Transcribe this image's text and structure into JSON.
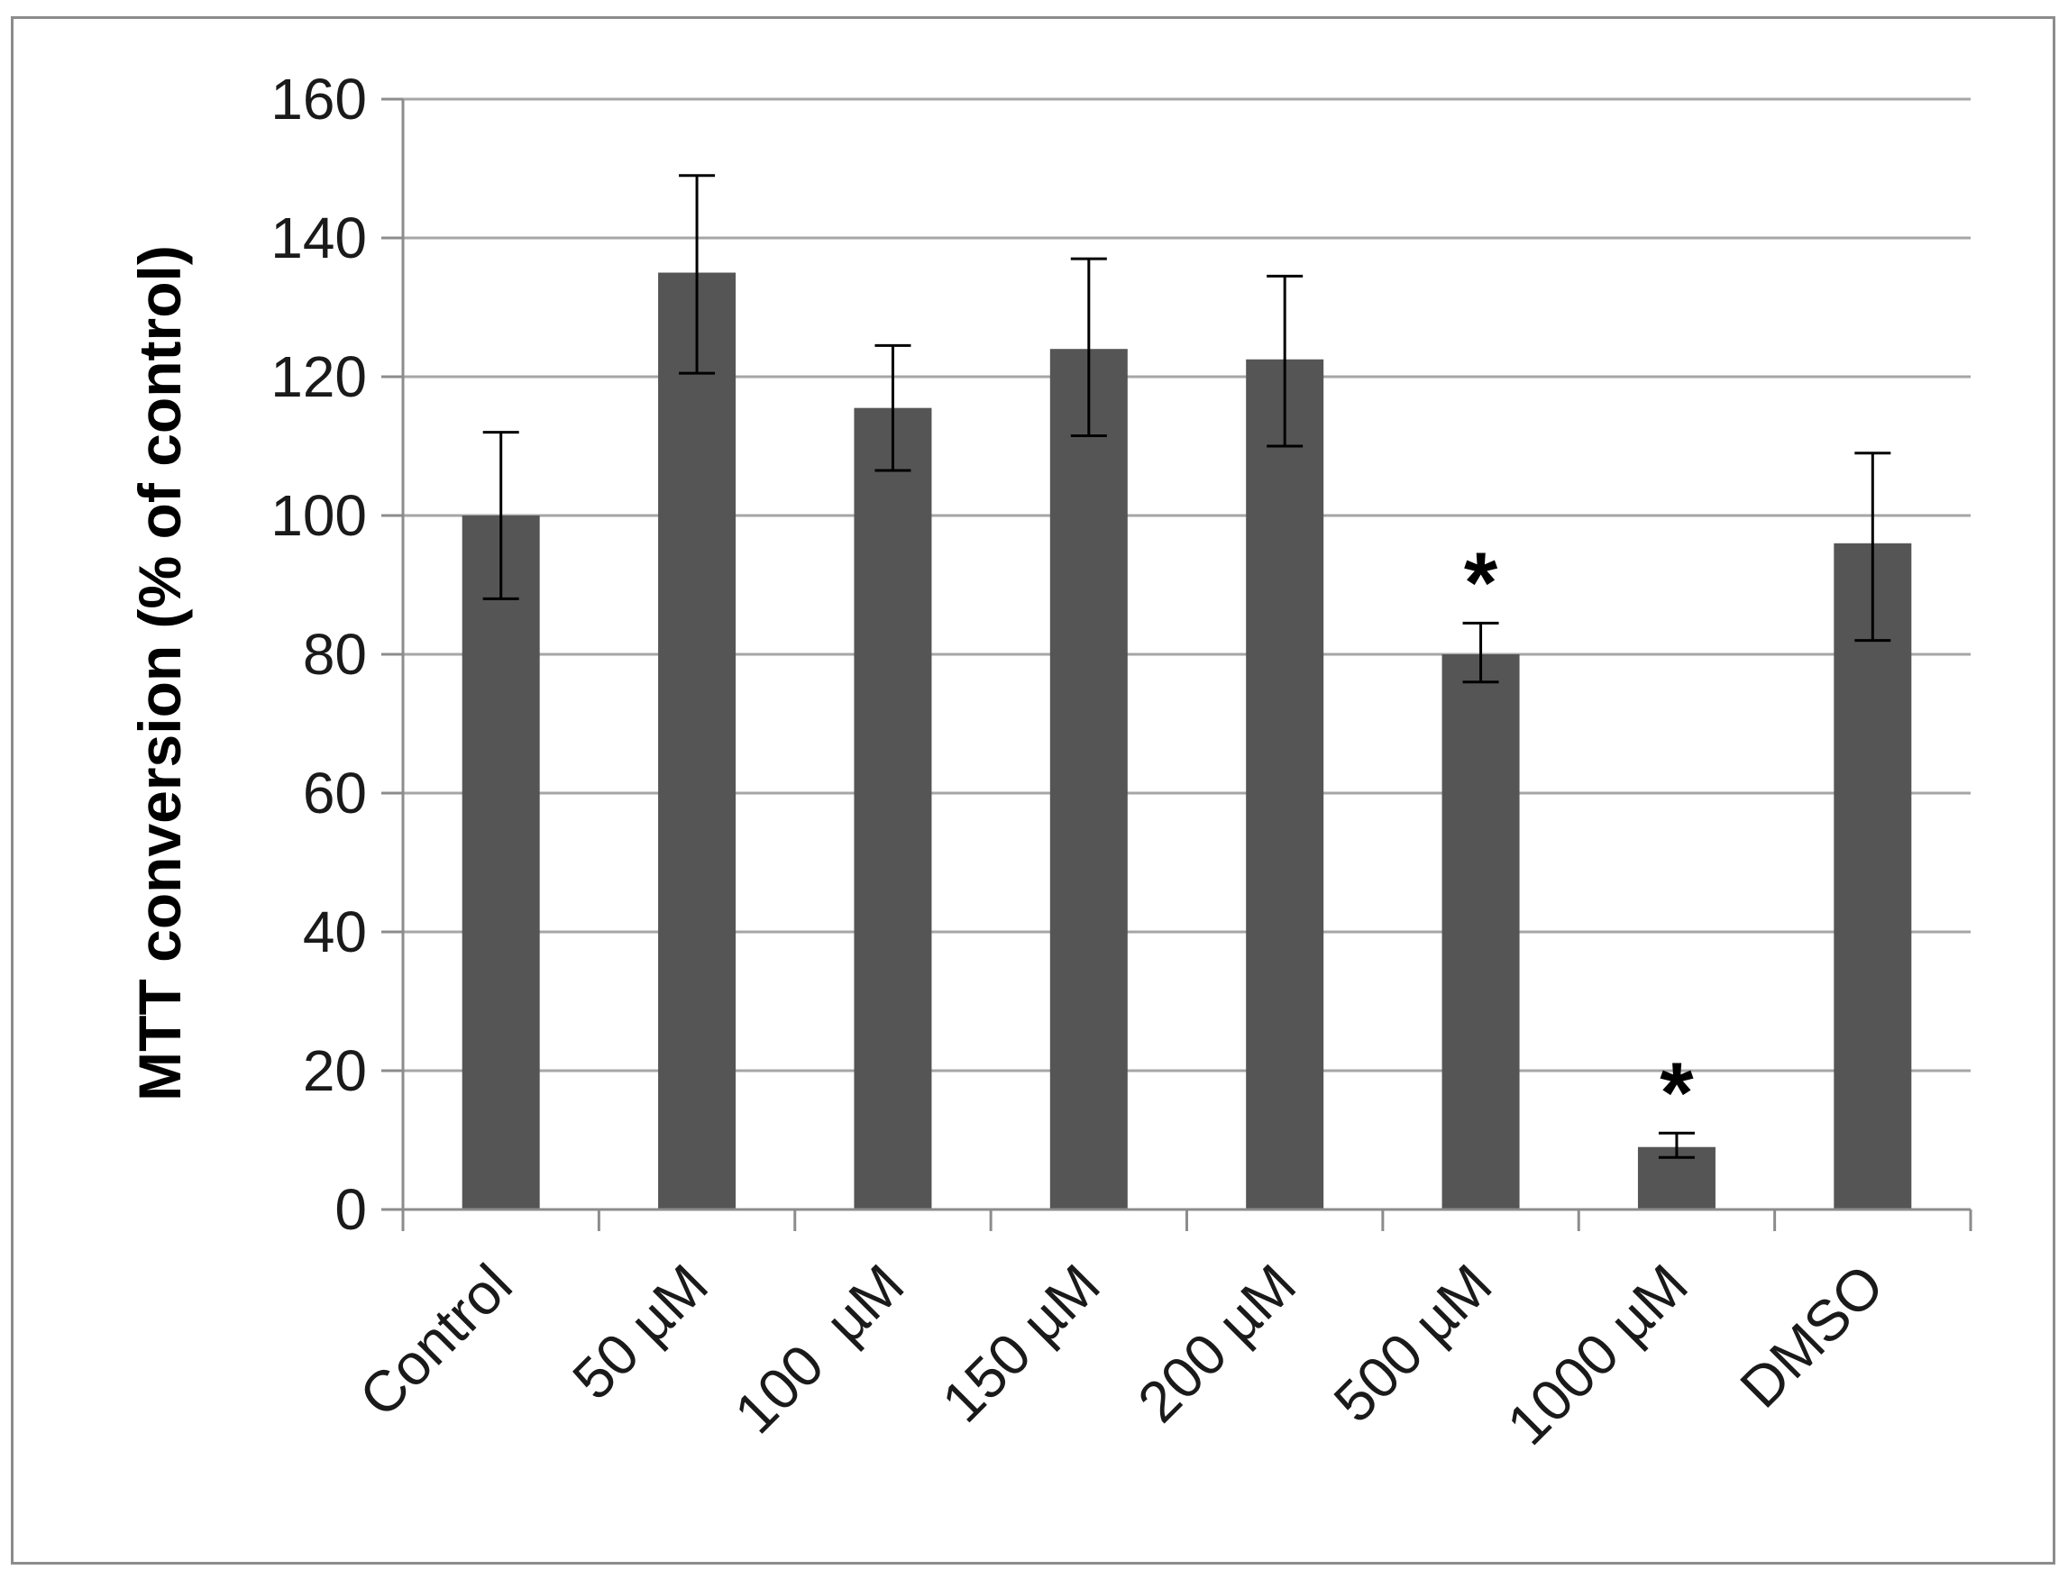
{
  "chart_data": {
    "type": "bar",
    "title": "",
    "xlabel": "",
    "ylabel": "MTT conversion (% of control)",
    "ylim": [
      0,
      160
    ],
    "yticks": [
      0,
      20,
      40,
      60,
      80,
      100,
      120,
      140,
      160
    ],
    "grid": true,
    "categories": [
      "Control",
      "50 µM",
      "100  µM",
      "150 µM",
      "200 µM",
      "500 µM",
      "1000 µM",
      "DMSO"
    ],
    "values": [
      100,
      135,
      115.5,
      124,
      122.5,
      80,
      9,
      96
    ],
    "error_plus": [
      12,
      14,
      9,
      13,
      12,
      4.5,
      2,
      13
    ],
    "error_minus": [
      12,
      14.5,
      9,
      12.5,
      12.5,
      4,
      1.5,
      14
    ],
    "significance": [
      "",
      "",
      "",
      "",
      "",
      "*",
      "*",
      ""
    ],
    "colors": {
      "bar": "#555555",
      "grid": "#a6a6a6",
      "axis": "#8c8c8c",
      "error": "#000000"
    }
  }
}
